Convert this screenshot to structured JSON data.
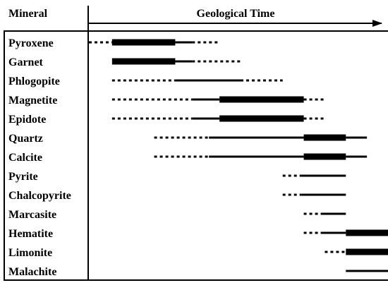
{
  "header": {
    "column_label": "Mineral",
    "time_label": "Geological Time"
  },
  "minerals": [
    {
      "name": "Pyroxene",
      "segments": [
        {
          "from": 0.0,
          "to": 0.055,
          "style": "dotted"
        },
        {
          "from": 0.055,
          "to": 0.205,
          "style": "thick"
        },
        {
          "from": 0.205,
          "to": 0.245,
          "style": "solid"
        },
        {
          "from": 0.245,
          "to": 0.31,
          "style": "dotted"
        }
      ]
    },
    {
      "name": "Garnet",
      "segments": [
        {
          "from": 0.055,
          "to": 0.205,
          "style": "thick"
        },
        {
          "from": 0.205,
          "to": 0.245,
          "style": "solid"
        },
        {
          "from": 0.245,
          "to": 0.36,
          "style": "dotted"
        }
      ]
    },
    {
      "name": "Phlogopite",
      "segments": [
        {
          "from": 0.055,
          "to": 0.205,
          "style": "dotted"
        },
        {
          "from": 0.205,
          "to": 0.36,
          "style": "solid"
        },
        {
          "from": 0.36,
          "to": 0.46,
          "style": "dotted"
        }
      ]
    },
    {
      "name": "Magnetite",
      "segments": [
        {
          "from": 0.055,
          "to": 0.245,
          "style": "dotted"
        },
        {
          "from": 0.245,
          "to": 0.31,
          "style": "solid"
        },
        {
          "from": 0.31,
          "to": 0.51,
          "style": "thick"
        },
        {
          "from": 0.51,
          "to": 0.56,
          "style": "dotted"
        }
      ]
    },
    {
      "name": "Epidote",
      "segments": [
        {
          "from": 0.055,
          "to": 0.245,
          "style": "dotted"
        },
        {
          "from": 0.245,
          "to": 0.31,
          "style": "solid"
        },
        {
          "from": 0.31,
          "to": 0.51,
          "style": "thick"
        },
        {
          "from": 0.51,
          "to": 0.56,
          "style": "dotted"
        }
      ]
    },
    {
      "name": "Quartz",
      "segments": [
        {
          "from": 0.155,
          "to": 0.285,
          "style": "dotted"
        },
        {
          "from": 0.285,
          "to": 0.51,
          "style": "solid"
        },
        {
          "from": 0.51,
          "to": 0.61,
          "style": "thick"
        },
        {
          "from": 0.61,
          "to": 0.66,
          "style": "solid"
        }
      ]
    },
    {
      "name": "Calcite",
      "segments": [
        {
          "from": 0.155,
          "to": 0.285,
          "style": "dotted"
        },
        {
          "from": 0.285,
          "to": 0.51,
          "style": "solid"
        },
        {
          "from": 0.51,
          "to": 0.61,
          "style": "thick"
        },
        {
          "from": 0.61,
          "to": 0.66,
          "style": "solid"
        }
      ]
    },
    {
      "name": "Pyrite",
      "segments": [
        {
          "from": 0.46,
          "to": 0.505,
          "style": "dotted"
        },
        {
          "from": 0.505,
          "to": 0.61,
          "style": "solid"
        }
      ]
    },
    {
      "name": "Chalcopyrite",
      "segments": [
        {
          "from": 0.46,
          "to": 0.505,
          "style": "dotted"
        },
        {
          "from": 0.505,
          "to": 0.61,
          "style": "solid"
        }
      ]
    },
    {
      "name": "Marcasite",
      "segments": [
        {
          "from": 0.51,
          "to": 0.555,
          "style": "dotted"
        },
        {
          "from": 0.555,
          "to": 0.61,
          "style": "solid"
        }
      ]
    },
    {
      "name": "Hematite",
      "segments": [
        {
          "from": 0.51,
          "to": 0.555,
          "style": "dotted"
        },
        {
          "from": 0.555,
          "to": 0.61,
          "style": "solid"
        },
        {
          "from": 0.61,
          "to": 0.71,
          "style": "thick"
        }
      ]
    },
    {
      "name": "Limonite",
      "segments": [
        {
          "from": 0.56,
          "to": 0.61,
          "style": "dotted"
        },
        {
          "from": 0.61,
          "to": 0.71,
          "style": "thick"
        }
      ]
    },
    {
      "name": "Malachite",
      "segments": [
        {
          "from": 0.61,
          "to": 0.71,
          "style": "solid"
        }
      ]
    }
  ]
}
